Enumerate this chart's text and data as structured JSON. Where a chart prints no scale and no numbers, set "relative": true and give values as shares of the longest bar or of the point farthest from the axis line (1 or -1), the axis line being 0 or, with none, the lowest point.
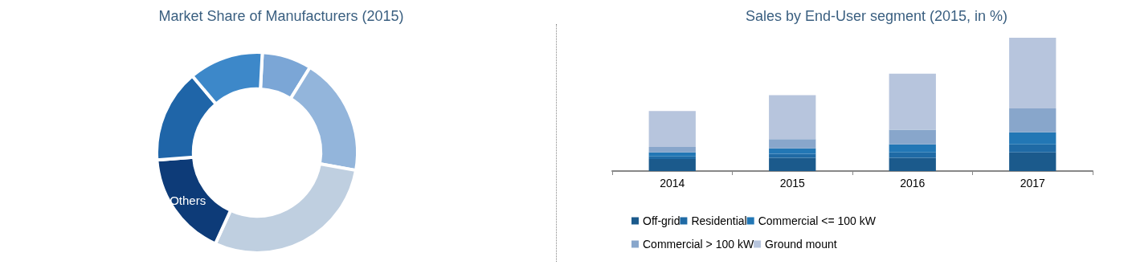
{
  "chart_data": [
    {
      "type": "donut",
      "title": "Market Share of Manufacturers (2015)",
      "categories": [
        null,
        null,
        null,
        "Others",
        null,
        null
      ],
      "values": [
        8,
        19,
        29,
        17,
        15,
        12
      ],
      "colors": [
        "#7ba6d6",
        "#93b5db",
        "#bfcfe0",
        "#0d3b78",
        "#1f65a8",
        "#3d88c9"
      ],
      "legend": false
    },
    {
      "type": "bar",
      "title": "Sales by End-User segment (2015, in %)",
      "categories": [
        "2014",
        "2015",
        "2016",
        "2017"
      ],
      "stacked": true,
      "relative": true,
      "legend": "bottom",
      "series": [
        {
          "name": "Off-grid",
          "color": "#1b5a8c",
          "values": [
            0.09,
            0.1,
            0.1,
            0.14
          ]
        },
        {
          "name": "Residential",
          "color": "#1f6aa5",
          "values": [
            0.02,
            0.03,
            0.04,
            0.06
          ]
        },
        {
          "name": "Commercial <= 100 kW",
          "color": "#2277b5",
          "values": [
            0.03,
            0.04,
            0.06,
            0.09
          ]
        },
        {
          "name": "Commercial > 100 kW",
          "color": "#88a6cb",
          "values": [
            0.04,
            0.07,
            0.11,
            0.18
          ]
        },
        {
          "name": "Ground mount",
          "color": "#b7c5dd",
          "values": [
            0.27,
            0.33,
            0.42,
            0.53
          ]
        }
      ]
    }
  ]
}
